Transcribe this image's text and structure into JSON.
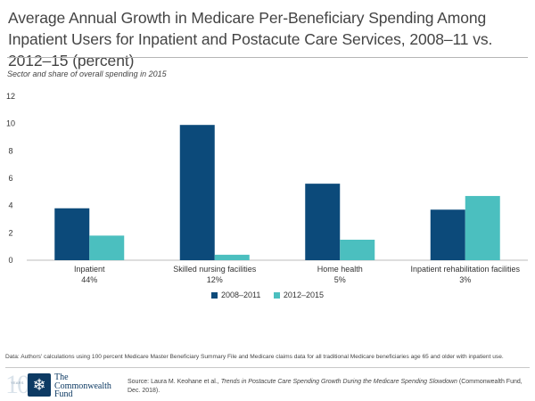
{
  "title": "Average Annual Growth in Medicare Per-Beneficiary Spending Among Inpatient Users for Inpatient and Postacute Care Services, 2008–11 vs. 2012–15 (percent)",
  "subtitle": "Sector and share of overall spending in 2015",
  "chart_data": {
    "type": "bar",
    "categories": [
      "Inpatient",
      "Skilled nursing facilities",
      "Home health",
      "Inpatient rehabilitation facilities"
    ],
    "category_shares": [
      "44%",
      "12%",
      "5%",
      "3%"
    ],
    "series": [
      {
        "name": "2008–2011",
        "values": [
          3.8,
          9.9,
          5.6,
          3.7
        ],
        "color": "#0c4a7a"
      },
      {
        "name": "2012–2015",
        "values": [
          1.8,
          0.4,
          1.5,
          4.7
        ],
        "color": "#4bbfbf"
      }
    ],
    "ylim": [
      0,
      12
    ],
    "yticks": [
      "0",
      "2",
      "4",
      "6",
      "8",
      "10",
      "12"
    ],
    "grid": false,
    "legend_position": "bottom"
  },
  "note": "Data: Authors' calculations using 100 percent Medicare Master Beneficiary Summary File and Medicare claims data for all traditional Medicare beneficiaries age 65 and older with inpatient use.",
  "source": {
    "prefix": "Source: Laura M. Keohane et al., ",
    "italic": "Trends in Postacute Care Spending Growth During the Medicare Spending Slowdown",
    "suffix": " (Commonwealth Fund, Dec. 2018)."
  },
  "logo": {
    "ten": "10",
    "years": "YEARS",
    "badge_icon": "snowflake-icon",
    "line1": "The",
    "line2": "Commonwealth",
    "line3": "Fund"
  }
}
